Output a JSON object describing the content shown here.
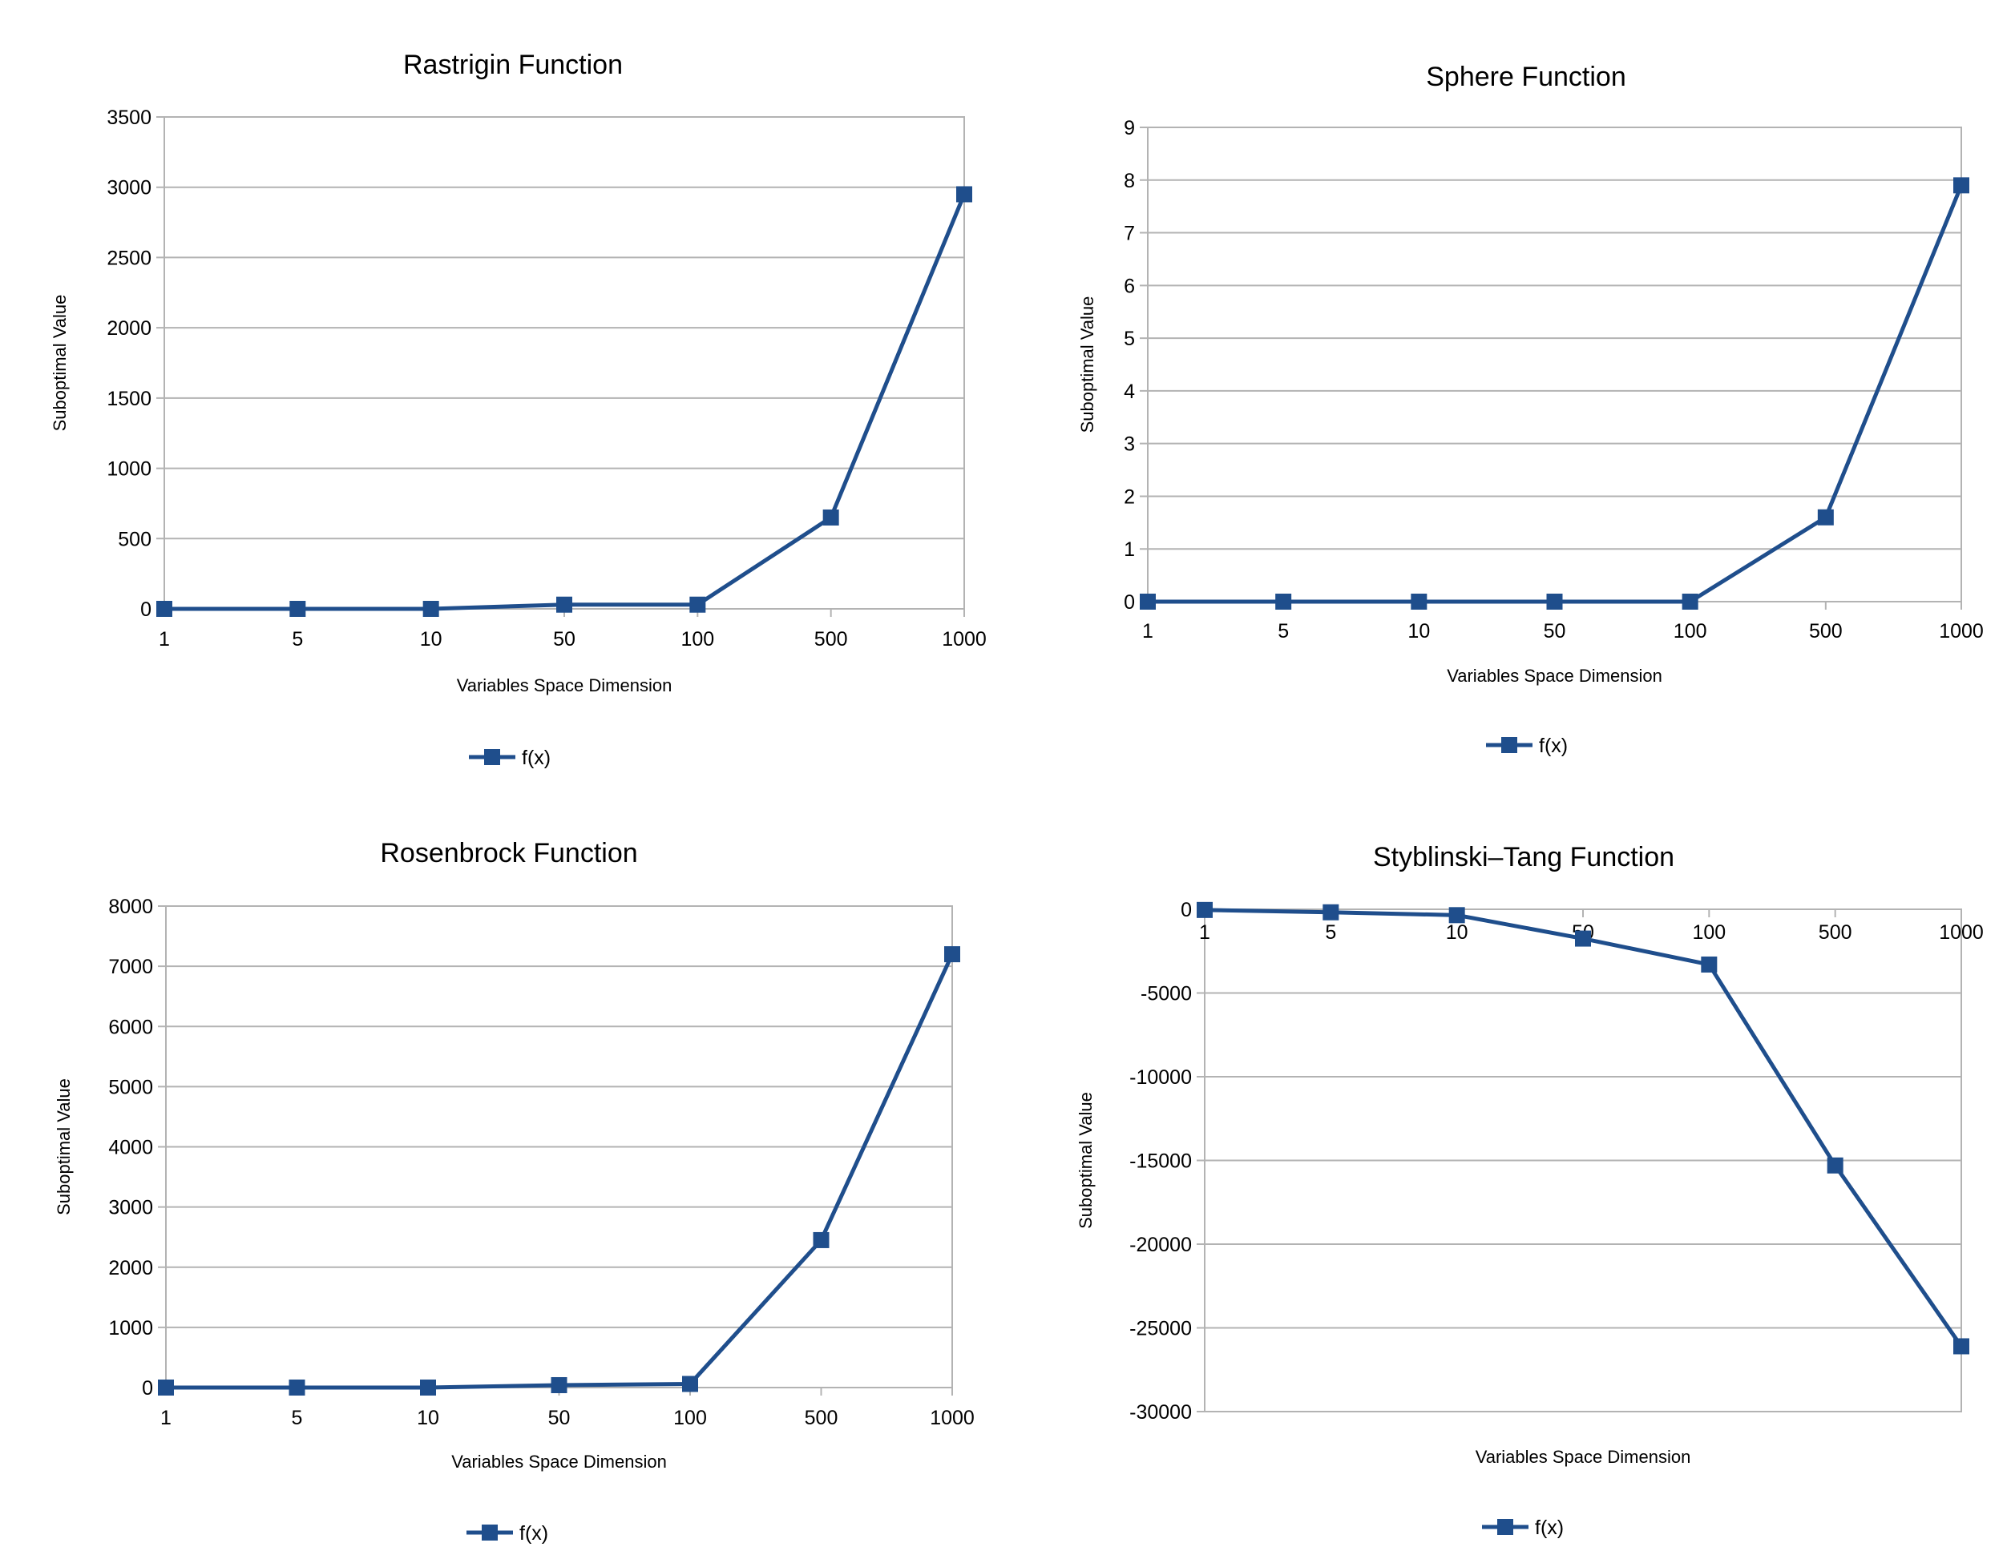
{
  "colors": {
    "series": "#1f4e8c",
    "grid": "#b3b3b3",
    "text": "#000000",
    "background": "#ffffff"
  },
  "marker": "square",
  "chart_data": [
    {
      "type": "line",
      "title": "Rastrigin Function",
      "xlabel": "Variables Space Dimension",
      "ylabel": "Suboptimal Value",
      "categories": [
        "1",
        "5",
        "10",
        "50",
        "100",
        "500",
        "1000"
      ],
      "series": [
        {
          "name": "f(x)",
          "values": [
            0,
            0,
            0,
            30,
            30,
            650,
            2950
          ]
        }
      ],
      "ylim": [
        0,
        3500
      ],
      "yticks": [
        0,
        500,
        1000,
        1500,
        2000,
        2500,
        3000,
        3500
      ],
      "grid": true,
      "legend": "bottom"
    },
    {
      "type": "line",
      "title": "Sphere Function",
      "xlabel": "Variables Space Dimension",
      "ylabel": "Suboptimal Value",
      "categories": [
        "1",
        "5",
        "10",
        "50",
        "100",
        "500",
        "1000"
      ],
      "series": [
        {
          "name": "f(x)",
          "values": [
            0,
            0,
            0,
            0,
            0,
            1.6,
            7.9
          ]
        }
      ],
      "ylim": [
        0,
        9
      ],
      "yticks": [
        0,
        1,
        2,
        3,
        4,
        5,
        6,
        7,
        8,
        9
      ],
      "grid": true,
      "legend": "bottom"
    },
    {
      "type": "line",
      "title": "Rosenbrock Function",
      "xlabel": "Variables Space Dimension",
      "ylabel": "Suboptimal Value",
      "categories": [
        "1",
        "5",
        "10",
        "50",
        "100",
        "500",
        "1000"
      ],
      "series": [
        {
          "name": "f(x)",
          "values": [
            0,
            0,
            0,
            40,
            60,
            2450,
            7200
          ]
        }
      ],
      "ylim": [
        0,
        8000
      ],
      "yticks": [
        0,
        1000,
        2000,
        3000,
        4000,
        5000,
        6000,
        7000,
        8000
      ],
      "grid": true,
      "legend": "bottom"
    },
    {
      "type": "line",
      "title": "Styblinski–Tang Function",
      "xlabel": "Variables Space Dimension",
      "ylabel": "Suboptimal Value",
      "categories": [
        "1",
        "5",
        "10",
        "50",
        "100",
        "500",
        "1000"
      ],
      "series": [
        {
          "name": "f(x)",
          "values": [
            -40,
            -180,
            -350,
            -1750,
            -3300,
            -15300,
            -26100
          ]
        }
      ],
      "ylim": [
        -30000,
        0
      ],
      "yticks": [
        0,
        -5000,
        -10000,
        -15000,
        -20000,
        -25000,
        -30000
      ],
      "grid": true,
      "legend": "bottom",
      "x_labels_at": "top"
    }
  ]
}
